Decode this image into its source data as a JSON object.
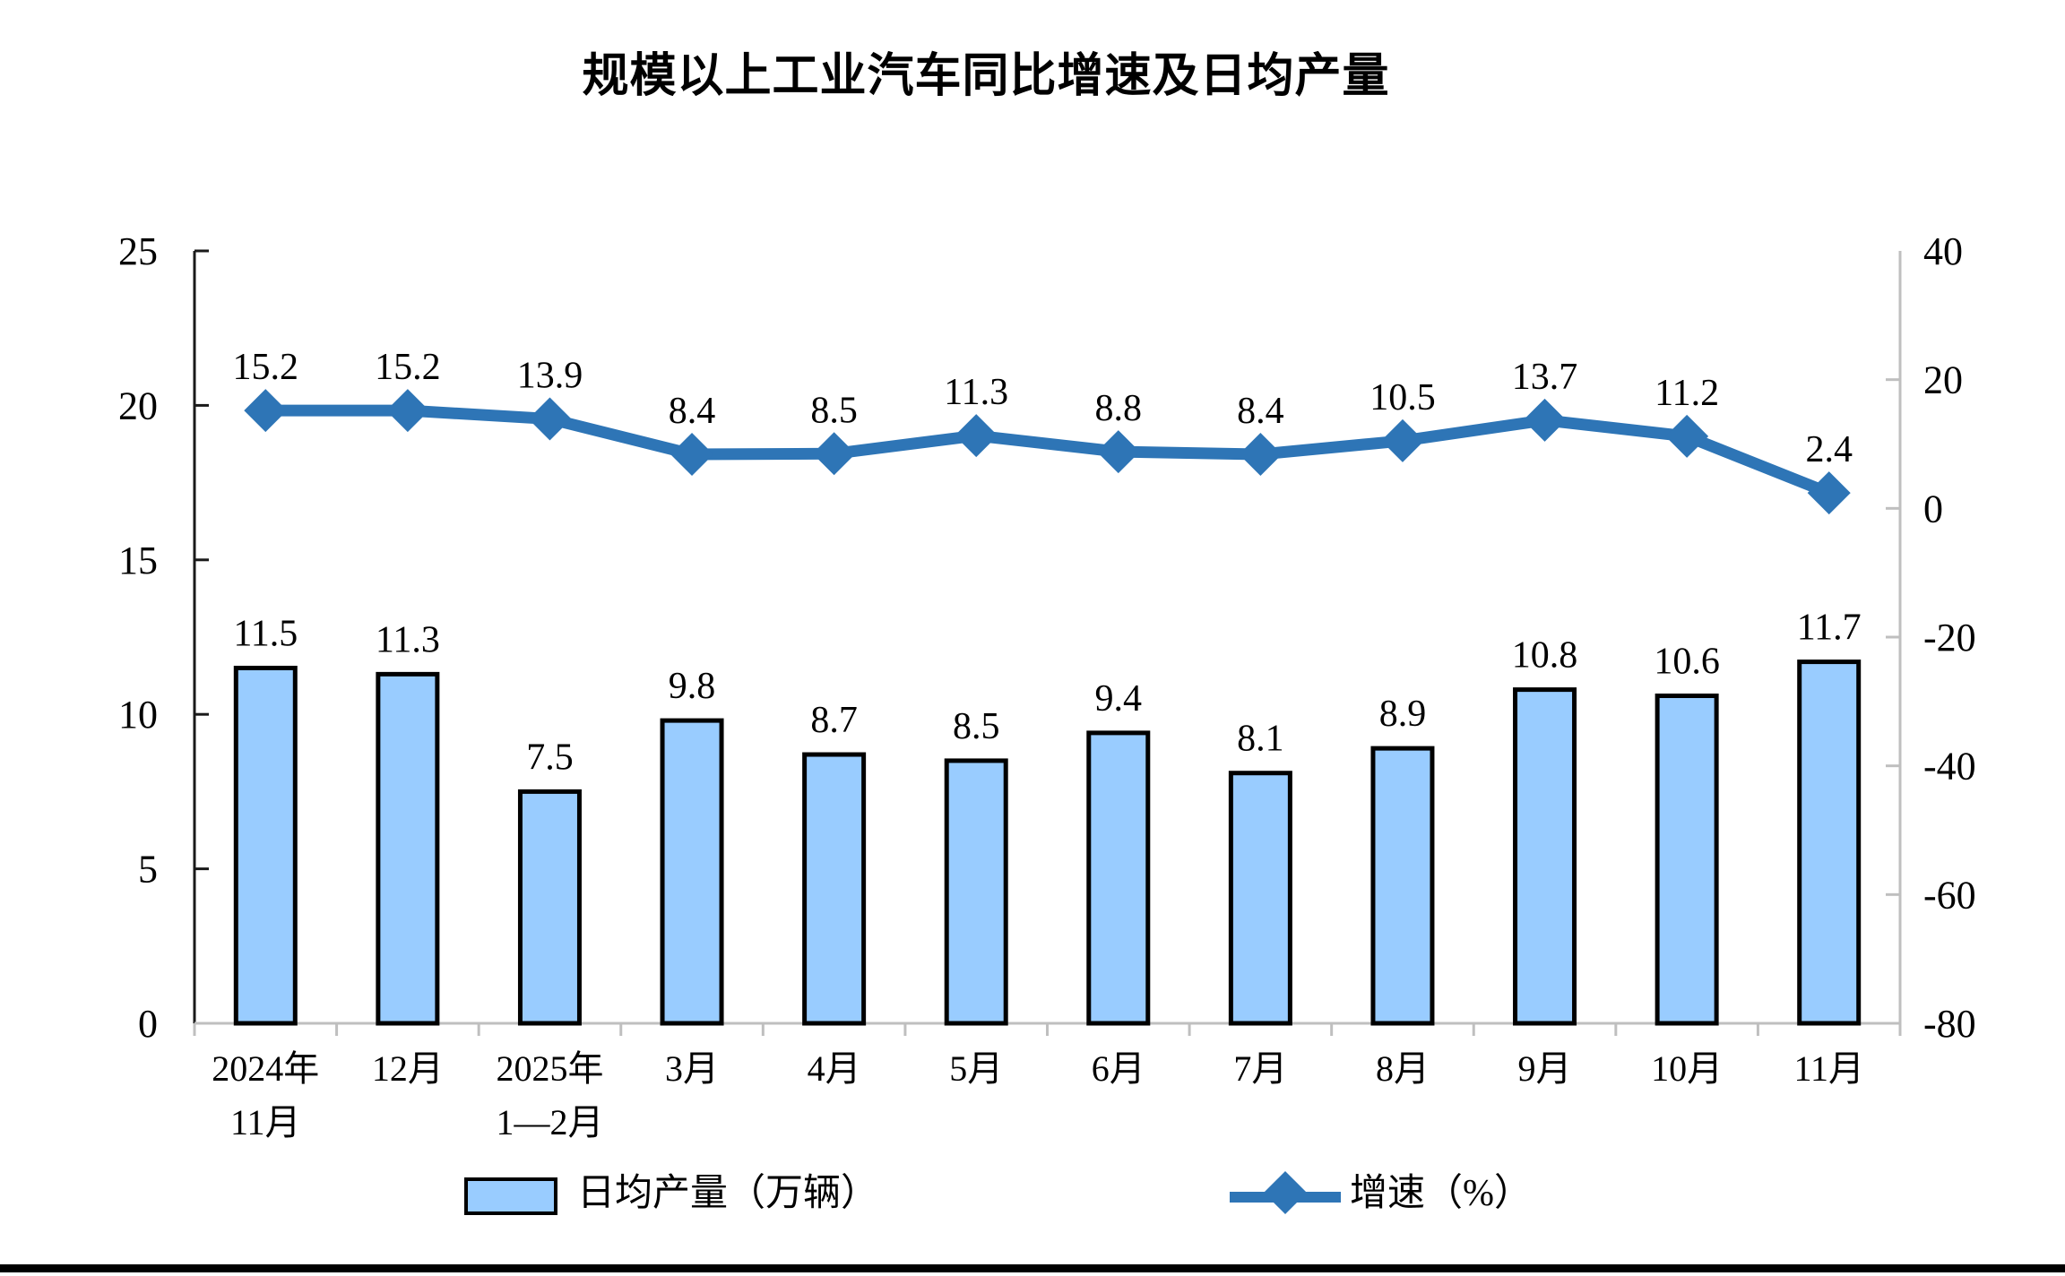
{
  "title": "规模以上工业汽车同比增速及日均产量",
  "legend": {
    "bar": "日均产量（万辆）",
    "line": "增速（%）"
  },
  "chart_data": {
    "type": "bar",
    "subtype": "combo_bar_line_dual_axis",
    "title": "规模以上工业汽车同比增速及日均产量",
    "categories": [
      [
        "2024年",
        "11月"
      ],
      [
        "12月"
      ],
      [
        "2025年",
        "1—2月"
      ],
      [
        "3月"
      ],
      [
        "4月"
      ],
      [
        "5月"
      ],
      [
        "6月"
      ],
      [
        "7月"
      ],
      [
        "8月"
      ],
      [
        "9月"
      ],
      [
        "10月"
      ],
      [
        "11月"
      ]
    ],
    "series": [
      {
        "name": "日均产量（万辆）",
        "type": "bar",
        "axis": "left",
        "values": [
          11.5,
          11.3,
          7.5,
          9.8,
          8.7,
          8.5,
          9.4,
          8.1,
          8.9,
          10.8,
          10.6,
          11.7
        ],
        "fill": "#99CCFF",
        "stroke": "#000000"
      },
      {
        "name": "增速（%）",
        "type": "line",
        "axis": "right",
        "values": [
          15.2,
          15.2,
          13.9,
          8.4,
          8.5,
          11.3,
          8.8,
          8.4,
          10.5,
          13.7,
          11.2,
          2.4
        ],
        "color": "#2E75B6",
        "marker": "diamond"
      }
    ],
    "left_axis": {
      "min": 0,
      "max": 25,
      "ticks": [
        0,
        5,
        10,
        15,
        20,
        25
      ]
    },
    "right_axis": {
      "min": -80,
      "max": 40,
      "ticks": [
        -80,
        -60,
        -40,
        -20,
        0,
        20,
        40
      ]
    },
    "axis_colors": {
      "left": "#1a1a1a",
      "right": "#bfbfbf",
      "bottom": "#bfbfbf"
    },
    "data_labels": true,
    "grid": false,
    "legend_position": "bottom"
  }
}
